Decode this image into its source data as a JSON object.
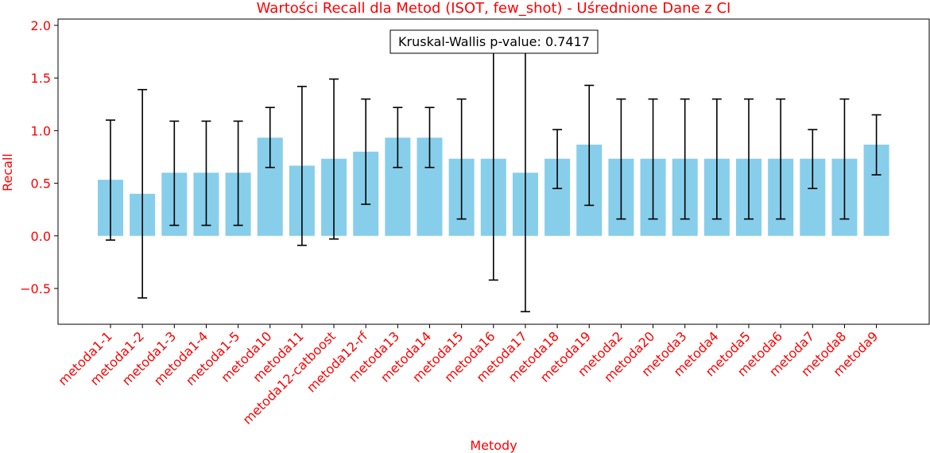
{
  "chart_data": {
    "type": "bar",
    "title": "Wartości Recall dla Metod (ISOT, few_shot) - Uśrednione Dane z CI",
    "xlabel": "Metody",
    "ylabel": "Recall",
    "ylim": [
      -0.84,
      2.06
    ],
    "yticks": [
      -0.5,
      0.0,
      0.5,
      1.0,
      1.5,
      2.0
    ],
    "ytick_labels": [
      "−0.5",
      "0.0",
      "0.5",
      "1.0",
      "1.5",
      "2.0"
    ],
    "grid": false,
    "bar_color": "#87ceeb",
    "text_color": "#ff0000",
    "annotation": "Kruskal-Wallis p-value: 0.7417",
    "categories": [
      "metoda1-1",
      "metoda1-2",
      "metoda1-3",
      "metoda1-4",
      "metoda1-5",
      "metoda10",
      "metoda11",
      "metoda12-catboost",
      "metoda12-rf",
      "metoda13",
      "metoda14",
      "metoda15",
      "metoda16",
      "metoda17",
      "metoda18",
      "metoda19",
      "metoda2",
      "metoda20",
      "metoda3",
      "metoda4",
      "metoda5",
      "metoda6",
      "metoda7",
      "metoda8",
      "metoda9"
    ],
    "values": [
      0.533,
      0.4,
      0.6,
      0.6,
      0.6,
      0.933,
      0.667,
      0.733,
      0.8,
      0.933,
      0.933,
      0.733,
      0.733,
      0.6,
      0.733,
      0.867,
      0.733,
      0.733,
      0.733,
      0.733,
      0.733,
      0.733,
      0.733,
      0.733,
      0.867
    ],
    "ci_lower": [
      -0.04,
      -0.59,
      0.1,
      0.1,
      0.1,
      0.65,
      -0.09,
      -0.03,
      0.3,
      0.65,
      0.65,
      0.16,
      -0.42,
      -0.72,
      0.45,
      0.29,
      0.16,
      0.16,
      0.16,
      0.16,
      0.16,
      0.16,
      0.45,
      0.16,
      0.58
    ],
    "ci_upper": [
      1.1,
      1.39,
      1.09,
      1.09,
      1.09,
      1.22,
      1.42,
      1.49,
      1.3,
      1.22,
      1.22,
      1.3,
      1.89,
      1.92,
      1.01,
      1.43,
      1.3,
      1.3,
      1.3,
      1.3,
      1.3,
      1.3,
      1.01,
      1.3,
      1.15
    ]
  }
}
